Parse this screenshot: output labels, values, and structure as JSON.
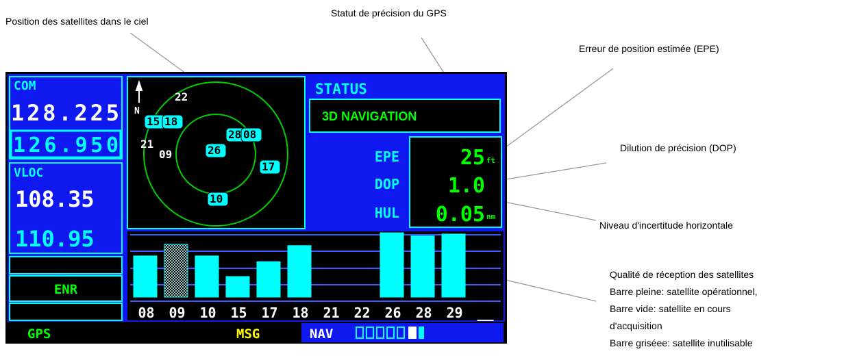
{
  "annotations": {
    "sky": "Position des satellites dans le ciel",
    "status": "Statut de précision du GPS",
    "epe": "Erreur de position estimée (EPE)",
    "dop": "Dilution de précision (DOP)",
    "hul": "Niveau d'incertitude horizontale",
    "quality": [
      "Qualité de réception des satellites",
      "Barre pleine: satellite opérationnel,",
      "Barre vide: satellite en cours",
      "d'acquisition",
      "Barre griséee: satellite inutilisable"
    ]
  },
  "screen": {
    "com": {
      "label": "COM",
      "active": "128.225",
      "standby": "126.950"
    },
    "vloc": {
      "label": "VLOC",
      "active": "108.35",
      "standby": "110.95"
    },
    "mode": "ENR",
    "status_title": "STATUS",
    "nav_status": "3D NAVIGATION",
    "epe": {
      "label": "EPE",
      "value": "25",
      "unit": "ft"
    },
    "dop": {
      "label": "DOP",
      "value": "1.0"
    },
    "hul": {
      "label": "HUL",
      "value": "0.05",
      "unit": "nm"
    },
    "sky": {
      "north": "N",
      "satellites": [
        {
          "label": "22",
          "boxed": false
        },
        {
          "label": "15",
          "boxed": true
        },
        {
          "label": "18",
          "boxed": true
        },
        {
          "label": "21",
          "boxed": false
        },
        {
          "label": "09",
          "boxed": false
        },
        {
          "label": "26",
          "boxed": true
        },
        {
          "label": "28",
          "boxed": true
        },
        {
          "label": "08",
          "boxed": true
        },
        {
          "label": "17",
          "boxed": true
        },
        {
          "label": "10",
          "boxed": true
        }
      ]
    },
    "signal": {
      "channels": [
        "08",
        "09",
        "10",
        "15",
        "17",
        "18",
        "21",
        "22",
        "26",
        "28",
        "29",
        "__"
      ],
      "values": [
        64,
        82,
        64,
        32,
        55,
        80,
        null,
        null,
        100,
        95,
        98,
        null
      ],
      "fill": [
        "solid",
        "hatched",
        "solid",
        "solid",
        "solid",
        "solid",
        "solid",
        "solid",
        "solid",
        "solid",
        "solid",
        "solid"
      ]
    },
    "footer": {
      "left": "GPS",
      "msg": "MSG",
      "nav": "NAV"
    }
  }
}
